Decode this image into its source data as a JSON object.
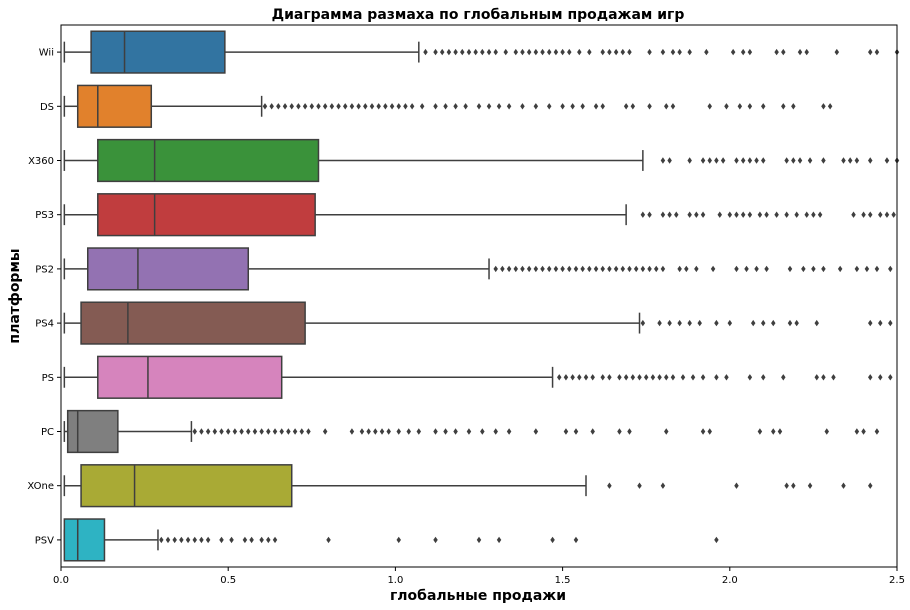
{
  "chart_data": {
    "type": "boxplot",
    "orientation": "horizontal",
    "title": "Диаграмма размаха по глобальным продажам игр",
    "xlabel": "глобальные продажи",
    "ylabel": "платформы",
    "xlim": [
      0,
      2.5
    ],
    "xticks": [
      "0.0",
      "0.5",
      "1.0",
      "1.5",
      "2.0",
      "2.5"
    ],
    "grid": false,
    "series": [
      {
        "name": "Wii",
        "color": "#3274a1",
        "whisker_low": 0.01,
        "q1": 0.09,
        "median": 0.19,
        "q3": 0.49,
        "whisker_high": 1.07,
        "outliers": [
          1.09,
          1.12,
          1.14,
          1.16,
          1.18,
          1.2,
          1.22,
          1.24,
          1.26,
          1.28,
          1.3,
          1.33,
          1.36,
          1.38,
          1.4,
          1.42,
          1.44,
          1.46,
          1.48,
          1.5,
          1.52,
          1.55,
          1.58,
          1.62,
          1.64,
          1.66,
          1.68,
          1.7,
          1.76,
          1.8,
          1.83,
          1.85,
          1.88,
          1.93,
          2.01,
          2.04,
          2.06,
          2.14,
          2.16,
          2.21,
          2.23,
          2.32,
          2.42,
          2.44,
          2.5
        ]
      },
      {
        "name": "DS",
        "color": "#e1812c",
        "whisker_low": 0.01,
        "q1": 0.05,
        "median": 0.11,
        "q3": 0.27,
        "whisker_high": 0.6,
        "outliers": [
          0.61,
          0.63,
          0.65,
          0.67,
          0.69,
          0.71,
          0.73,
          0.75,
          0.77,
          0.79,
          0.81,
          0.83,
          0.85,
          0.87,
          0.89,
          0.91,
          0.93,
          0.95,
          0.97,
          0.99,
          1.01,
          1.03,
          1.05,
          1.08,
          1.12,
          1.15,
          1.18,
          1.21,
          1.25,
          1.28,
          1.31,
          1.34,
          1.38,
          1.42,
          1.46,
          1.5,
          1.53,
          1.56,
          1.6,
          1.62,
          1.69,
          1.71,
          1.76,
          1.81,
          1.83,
          1.94,
          1.99,
          2.03,
          2.06,
          2.1,
          2.16,
          2.19,
          2.28,
          2.3
        ]
      },
      {
        "name": "X360",
        "color": "#3a923a",
        "whisker_low": 0.01,
        "q1": 0.11,
        "median": 0.28,
        "q3": 0.77,
        "whisker_high": 1.74,
        "outliers": [
          1.8,
          1.82,
          1.88,
          1.92,
          1.94,
          1.96,
          1.98,
          2.02,
          2.04,
          2.06,
          2.08,
          2.1,
          2.17,
          2.19,
          2.21,
          2.24,
          2.28,
          2.34,
          2.36,
          2.38,
          2.42,
          2.47,
          2.5
        ]
      },
      {
        "name": "PS3",
        "color": "#c03d3e",
        "whisker_low": 0.01,
        "q1": 0.11,
        "median": 0.28,
        "q3": 0.76,
        "whisker_high": 1.69,
        "outliers": [
          1.74,
          1.76,
          1.8,
          1.82,
          1.84,
          1.88,
          1.9,
          1.92,
          1.97,
          2.0,
          2.02,
          2.04,
          2.06,
          2.09,
          2.11,
          2.14,
          2.17,
          2.2,
          2.23,
          2.25,
          2.27,
          2.37,
          2.4,
          2.42,
          2.45,
          2.47,
          2.49
        ]
      },
      {
        "name": "PS2",
        "color": "#9372b2",
        "whisker_low": 0.01,
        "q1": 0.08,
        "median": 0.23,
        "q3": 0.56,
        "whisker_high": 1.28,
        "outliers": [
          1.3,
          1.32,
          1.34,
          1.36,
          1.38,
          1.4,
          1.42,
          1.44,
          1.46,
          1.48,
          1.5,
          1.52,
          1.54,
          1.56,
          1.58,
          1.6,
          1.62,
          1.64,
          1.66,
          1.68,
          1.7,
          1.72,
          1.74,
          1.76,
          1.78,
          1.8,
          1.85,
          1.87,
          1.9,
          1.95,
          2.02,
          2.05,
          2.08,
          2.11,
          2.18,
          2.22,
          2.25,
          2.28,
          2.33,
          2.38,
          2.41,
          2.44,
          2.48
        ]
      },
      {
        "name": "PS4",
        "color": "#845b53",
        "whisker_low": 0.01,
        "q1": 0.06,
        "median": 0.2,
        "q3": 0.73,
        "whisker_high": 1.73,
        "outliers": [
          1.74,
          1.79,
          1.82,
          1.85,
          1.88,
          1.91,
          1.96,
          2.0,
          2.07,
          2.1,
          2.13,
          2.18,
          2.2,
          2.26,
          2.42,
          2.45,
          2.48
        ]
      },
      {
        "name": "PS",
        "color": "#d684bd",
        "whisker_low": 0.01,
        "q1": 0.11,
        "median": 0.26,
        "q3": 0.66,
        "whisker_high": 1.47,
        "outliers": [
          1.49,
          1.51,
          1.53,
          1.55,
          1.57,
          1.59,
          1.62,
          1.64,
          1.67,
          1.69,
          1.71,
          1.73,
          1.75,
          1.77,
          1.79,
          1.81,
          1.83,
          1.86,
          1.89,
          1.92,
          1.96,
          1.99,
          2.06,
          2.1,
          2.16,
          2.26,
          2.28,
          2.31,
          2.42,
          2.45,
          2.48
        ]
      },
      {
        "name": "PC",
        "color": "#7f7f7f",
        "whisker_low": 0.01,
        "q1": 0.02,
        "median": 0.05,
        "q3": 0.17,
        "whisker_high": 0.39,
        "outliers": [
          0.4,
          0.42,
          0.44,
          0.46,
          0.48,
          0.5,
          0.52,
          0.54,
          0.56,
          0.58,
          0.6,
          0.62,
          0.64,
          0.66,
          0.68,
          0.7,
          0.72,
          0.74,
          0.79,
          0.87,
          0.9,
          0.92,
          0.94,
          0.96,
          0.98,
          1.01,
          1.04,
          1.07,
          1.12,
          1.15,
          1.18,
          1.22,
          1.26,
          1.3,
          1.34,
          1.42,
          1.51,
          1.54,
          1.59,
          1.67,
          1.7,
          1.81,
          1.92,
          1.94,
          2.09,
          2.13,
          2.15,
          2.29,
          2.38,
          2.4,
          2.44
        ]
      },
      {
        "name": "XOne",
        "color": "#a9aa35",
        "whisker_low": 0.01,
        "q1": 0.06,
        "median": 0.22,
        "q3": 0.69,
        "whisker_high": 1.57,
        "outliers": [
          1.64,
          1.73,
          1.8,
          2.02,
          2.17,
          2.19,
          2.24,
          2.34,
          2.42
        ]
      },
      {
        "name": "PSV",
        "color": "#2eb3c3",
        "whisker_low": 0.01,
        "q1": 0.01,
        "median": 0.05,
        "q3": 0.13,
        "whisker_high": 0.29,
        "outliers": [
          0.3,
          0.32,
          0.34,
          0.36,
          0.38,
          0.4,
          0.42,
          0.44,
          0.48,
          0.51,
          0.55,
          0.57,
          0.6,
          0.62,
          0.64,
          0.8,
          1.01,
          1.12,
          1.25,
          1.31,
          1.47,
          1.54,
          1.96
        ]
      }
    ]
  }
}
